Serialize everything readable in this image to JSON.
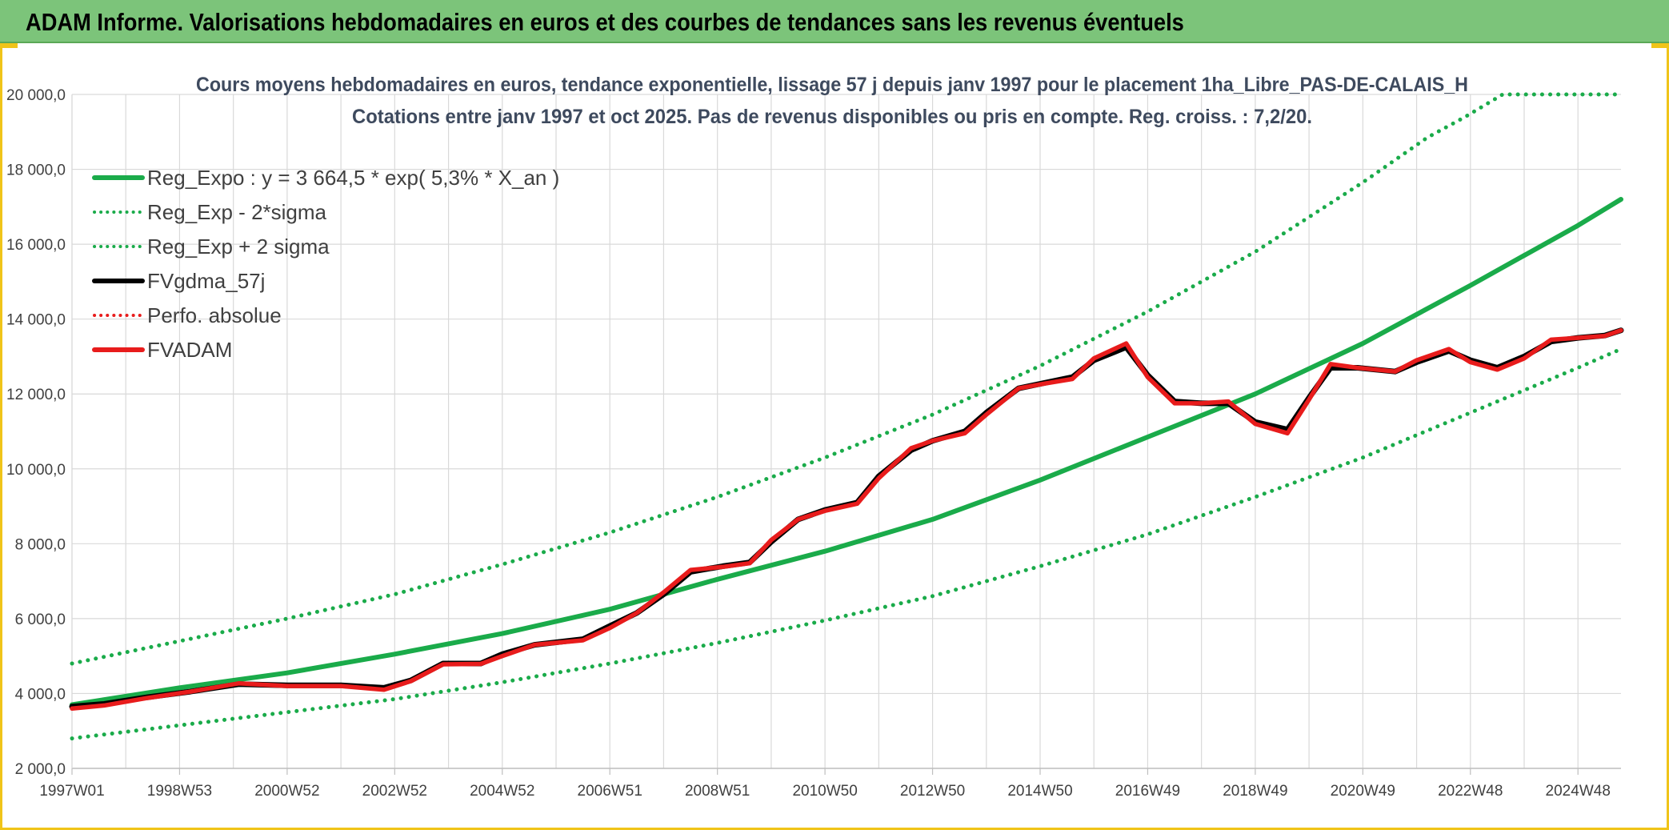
{
  "banner": {
    "title": "ADAM Informe. Valorisations hebdomadaires en euros et des courbes de tendances sans les revenus éventuels"
  },
  "chart_data": {
    "type": "line",
    "title_lines": [
      "Cours moyens hebdomadaires en euros, tendance exponentielle, lissage 57 j depuis janv 1997 pour le placement 1ha_Libre_PAS-DE-CALAIS_H",
      "Cotations entre janv 1997 et oct 2025. Pas de revenus disponibles ou pris en compte. Reg. croiss. : 7,2/20."
    ],
    "xlabel": "",
    "ylabel": "",
    "ylim": [
      2000,
      20000
    ],
    "xlim": [
      1997.0,
      2025.8
    ],
    "y_ticks": [
      {
        "value": 2000,
        "label": "2 000,0"
      },
      {
        "value": 4000,
        "label": "4 000,0"
      },
      {
        "value": 6000,
        "label": "6 000,0"
      },
      {
        "value": 8000,
        "label": "8 000,0"
      },
      {
        "value": 10000,
        "label": "10 000,0"
      },
      {
        "value": 12000,
        "label": "12 000,0"
      },
      {
        "value": 14000,
        "label": "14 000,0"
      },
      {
        "value": 16000,
        "label": "16 000,0"
      },
      {
        "value": 18000,
        "label": "18 000,0"
      },
      {
        "value": 20000,
        "label": "20 000,0"
      }
    ],
    "x_ticks": [
      {
        "value": 1997.0,
        "label": "1997W01"
      },
      {
        "value": 1999.0,
        "label": "1998W53"
      },
      {
        "value": 2001.0,
        "label": "2000W52"
      },
      {
        "value": 2003.0,
        "label": "2002W52"
      },
      {
        "value": 2005.0,
        "label": "2004W52"
      },
      {
        "value": 2007.0,
        "label": "2006W51"
      },
      {
        "value": 2009.0,
        "label": "2008W51"
      },
      {
        "value": 2011.0,
        "label": "2010W50"
      },
      {
        "value": 2013.0,
        "label": "2012W50"
      },
      {
        "value": 2015.0,
        "label": "2014W50"
      },
      {
        "value": 2017.0,
        "label": "2016W49"
      },
      {
        "value": 2019.0,
        "label": "2018W49"
      },
      {
        "value": 2021.0,
        "label": "2020W49"
      },
      {
        "value": 2023.0,
        "label": "2022W48"
      },
      {
        "value": 2025.0,
        "label": "2024W48"
      }
    ],
    "grid": true,
    "legend_position": "top-left",
    "series": [
      {
        "name": "Reg_Expo : y = 3 664,5 * exp( 5,3% *  X_an )",
        "color": "#1aab4a",
        "style": "solid",
        "points": [
          [
            1997.0,
            3700
          ],
          [
            1999.0,
            4150
          ],
          [
            2001.0,
            4550
          ],
          [
            2003.0,
            5050
          ],
          [
            2005.0,
            5600
          ],
          [
            2007.0,
            6250
          ],
          [
            2009.0,
            7050
          ],
          [
            2011.0,
            7800
          ],
          [
            2013.0,
            8650
          ],
          [
            2015.0,
            9700
          ],
          [
            2017.0,
            10850
          ],
          [
            2019.0,
            12000
          ],
          [
            2021.0,
            13350
          ],
          [
            2023.0,
            14900
          ],
          [
            2025.0,
            16500
          ],
          [
            2025.8,
            17200
          ]
        ]
      },
      {
        "name": "Reg_Exp - 2*sigma",
        "color": "#1aab4a",
        "style": "dotted",
        "points": [
          [
            1997.0,
            2800
          ],
          [
            1999.0,
            3150
          ],
          [
            2001.0,
            3500
          ],
          [
            2003.0,
            3850
          ],
          [
            2005.0,
            4300
          ],
          [
            2007.0,
            4800
          ],
          [
            2009.0,
            5350
          ],
          [
            2011.0,
            5950
          ],
          [
            2013.0,
            6600
          ],
          [
            2015.0,
            7400
          ],
          [
            2017.0,
            8250
          ],
          [
            2019.0,
            9250
          ],
          [
            2021.0,
            10300
          ],
          [
            2023.0,
            11500
          ],
          [
            2025.0,
            12700
          ],
          [
            2025.8,
            13200
          ]
        ]
      },
      {
        "name": "Reg_Exp + 2 sigma",
        "color": "#1aab4a",
        "style": "dotted",
        "points": [
          [
            1997.0,
            4800
          ],
          [
            1999.0,
            5400
          ],
          [
            2001.0,
            6000
          ],
          [
            2003.0,
            6650
          ],
          [
            2005.0,
            7450
          ],
          [
            2007.0,
            8300
          ],
          [
            2009.0,
            9250
          ],
          [
            2011.0,
            10300
          ],
          [
            2013.0,
            11450
          ],
          [
            2015.0,
            12750
          ],
          [
            2017.0,
            14200
          ],
          [
            2019.0,
            15800
          ],
          [
            2021.0,
            17650
          ],
          [
            2022.2,
            18850
          ],
          [
            2022.9,
            19400
          ],
          [
            2023.6,
            20000
          ],
          [
            2025.8,
            20000
          ]
        ]
      },
      {
        "name": "FVgdma_57j",
        "color": "#000000",
        "style": "solid",
        "points": [
          [
            1997.0,
            3650
          ],
          [
            1997.6,
            3720
          ],
          [
            1998.4,
            3900
          ],
          [
            1999.2,
            4050
          ],
          [
            2000.1,
            4250
          ],
          [
            2001.0,
            4220
          ],
          [
            2002.0,
            4220
          ],
          [
            2002.8,
            4150
          ],
          [
            2003.3,
            4350
          ],
          [
            2003.9,
            4800
          ],
          [
            2004.6,
            4800
          ],
          [
            2005.0,
            5050
          ],
          [
            2005.6,
            5300
          ],
          [
            2006.5,
            5450
          ],
          [
            2007.0,
            5800
          ],
          [
            2007.5,
            6150
          ],
          [
            2008.0,
            6650
          ],
          [
            2008.5,
            7250
          ],
          [
            2009.1,
            7400
          ],
          [
            2009.6,
            7500
          ],
          [
            2010.0,
            8050
          ],
          [
            2010.5,
            8650
          ],
          [
            2011.0,
            8900
          ],
          [
            2011.6,
            9100
          ],
          [
            2012.0,
            9800
          ],
          [
            2012.6,
            10500
          ],
          [
            2013.0,
            10750
          ],
          [
            2013.6,
            11000
          ],
          [
            2014.0,
            11500
          ],
          [
            2014.6,
            12150
          ],
          [
            2015.1,
            12300
          ],
          [
            2015.6,
            12450
          ],
          [
            2016.0,
            12900
          ],
          [
            2016.6,
            13250
          ],
          [
            2017.0,
            12500
          ],
          [
            2017.5,
            11800
          ],
          [
            2018.0,
            11750
          ],
          [
            2018.5,
            11750
          ],
          [
            2019.0,
            11250
          ],
          [
            2019.6,
            11050
          ],
          [
            2020.0,
            11900
          ],
          [
            2020.4,
            12700
          ],
          [
            2020.9,
            12700
          ],
          [
            2021.6,
            12600
          ],
          [
            2022.0,
            12850
          ],
          [
            2022.6,
            13150
          ],
          [
            2023.0,
            12900
          ],
          [
            2023.5,
            12700
          ],
          [
            2024.0,
            13000
          ],
          [
            2024.5,
            13400
          ],
          [
            2025.0,
            13500
          ],
          [
            2025.5,
            13560
          ],
          [
            2025.8,
            13700
          ]
        ]
      },
      {
        "name": "Perfo. absolue",
        "color": "#e81c1c",
        "style": "dotted",
        "points": []
      },
      {
        "name": "FVADAM",
        "color": "#e81c1c",
        "style": "solid",
        "points": [
          [
            1997.0,
            3600
          ],
          [
            1997.6,
            3680
          ],
          [
            1998.4,
            3880
          ],
          [
            1999.2,
            4050
          ],
          [
            2000.1,
            4270
          ],
          [
            2001.0,
            4200
          ],
          [
            2002.0,
            4200
          ],
          [
            2002.8,
            4100
          ],
          [
            2003.3,
            4330
          ],
          [
            2003.9,
            4780
          ],
          [
            2004.6,
            4790
          ],
          [
            2005.0,
            5000
          ],
          [
            2005.6,
            5300
          ],
          [
            2006.5,
            5420
          ],
          [
            2007.0,
            5750
          ],
          [
            2007.5,
            6150
          ],
          [
            2008.0,
            6700
          ],
          [
            2008.5,
            7300
          ],
          [
            2009.1,
            7380
          ],
          [
            2009.6,
            7480
          ],
          [
            2010.0,
            8100
          ],
          [
            2010.5,
            8650
          ],
          [
            2011.0,
            8880
          ],
          [
            2011.6,
            9070
          ],
          [
            2012.0,
            9750
          ],
          [
            2012.6,
            10550
          ],
          [
            2013.0,
            10750
          ],
          [
            2013.6,
            10950
          ],
          [
            2014.0,
            11450
          ],
          [
            2014.6,
            12150
          ],
          [
            2015.1,
            12280
          ],
          [
            2015.6,
            12400
          ],
          [
            2016.0,
            12950
          ],
          [
            2016.6,
            13350
          ],
          [
            2017.0,
            12450
          ],
          [
            2017.5,
            11750
          ],
          [
            2018.0,
            11750
          ],
          [
            2018.5,
            11800
          ],
          [
            2019.0,
            11200
          ],
          [
            2019.6,
            10950
          ],
          [
            2020.0,
            11850
          ],
          [
            2020.4,
            12800
          ],
          [
            2020.9,
            12700
          ],
          [
            2021.6,
            12600
          ],
          [
            2022.0,
            12900
          ],
          [
            2022.6,
            13200
          ],
          [
            2023.0,
            12850
          ],
          [
            2023.5,
            12650
          ],
          [
            2024.0,
            12950
          ],
          [
            2024.5,
            13450
          ],
          [
            2025.0,
            13500
          ],
          [
            2025.5,
            13550
          ],
          [
            2025.8,
            13700
          ]
        ]
      }
    ]
  }
}
